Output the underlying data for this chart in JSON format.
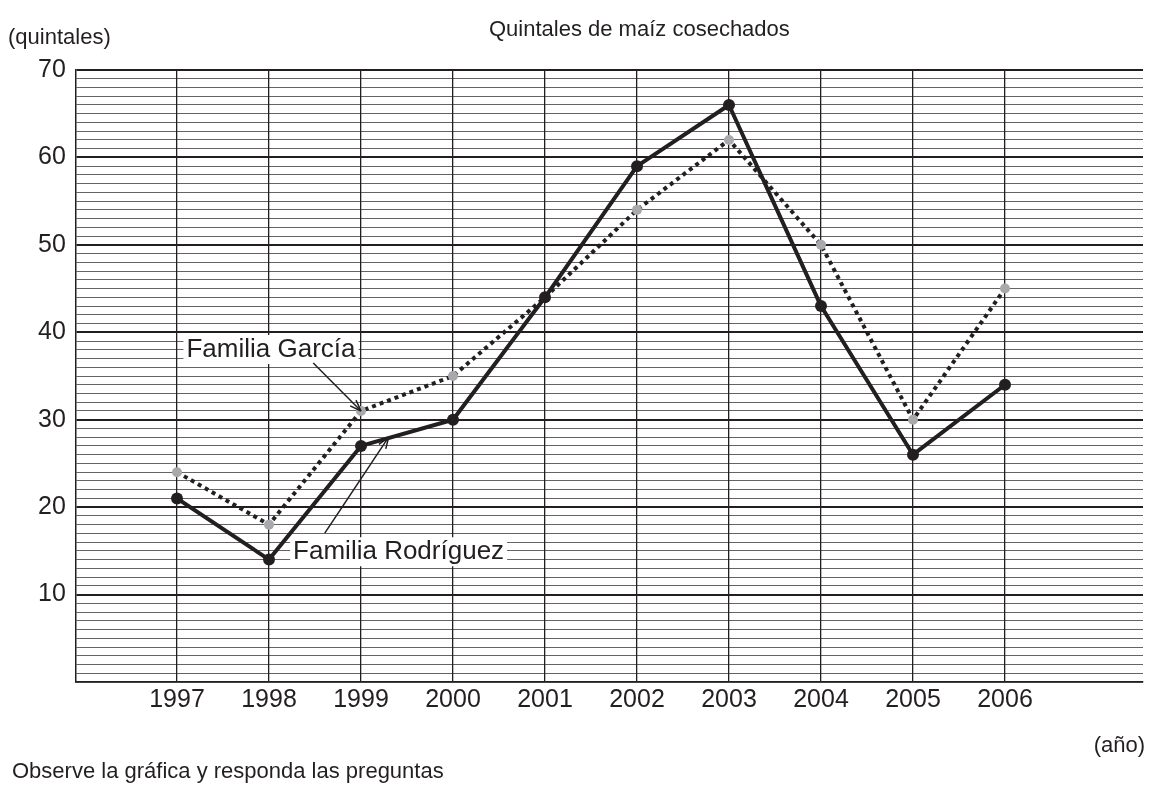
{
  "chart_data": {
    "type": "line",
    "title": "Quintales de maíz cosechados",
    "ylabel": "(quintales)",
    "xlabel": "(año)",
    "x": [
      1997,
      1998,
      1999,
      2000,
      2001,
      2002,
      2003,
      2004,
      2005,
      2006
    ],
    "xlim": [
      1995.9,
      2007.5
    ],
    "xticks": [
      1997,
      1998,
      1999,
      2000,
      2001,
      2002,
      2003,
      2004,
      2005,
      2006
    ],
    "ylim": [
      0,
      70
    ],
    "yticks": [
      {
        "value": 0,
        "label": null
      },
      {
        "value": 1,
        "label": null
      },
      {
        "value": 2,
        "label": null
      },
      {
        "value": 3,
        "label": null
      },
      {
        "value": 4,
        "label": null
      },
      {
        "value": 5,
        "label": null
      },
      {
        "value": 6,
        "label": null
      },
      {
        "value": 7,
        "label": null
      },
      {
        "value": 8,
        "label": null
      },
      {
        "value": 9,
        "label": null
      },
      10,
      {
        "value": 11,
        "label": null
      },
      {
        "value": 12,
        "label": null
      },
      {
        "value": 13,
        "label": null
      },
      {
        "value": 14,
        "label": null
      },
      {
        "value": 15,
        "label": null
      },
      {
        "value": 16,
        "label": null
      },
      {
        "value": 17,
        "label": null
      },
      {
        "value": 18,
        "label": null
      },
      {
        "value": 19,
        "label": null
      },
      20,
      {
        "value": 21,
        "label": null
      },
      {
        "value": 22,
        "label": null
      },
      {
        "value": 23,
        "label": null
      },
      {
        "value": 24,
        "label": null
      },
      {
        "value": 25,
        "label": null
      },
      {
        "value": 26,
        "label": null
      },
      {
        "value": 27,
        "label": null
      },
      {
        "value": 28,
        "label": null
      },
      {
        "value": 29,
        "label": null
      },
      30,
      {
        "value": 31,
        "label": null
      },
      {
        "value": 32,
        "label": null
      },
      {
        "value": 33,
        "label": null
      },
      {
        "value": 34,
        "label": null
      },
      {
        "value": 35,
        "label": null
      },
      {
        "value": 36,
        "label": null
      },
      {
        "value": 37,
        "label": null
      },
      {
        "value": 38,
        "label": null
      },
      {
        "value": 39,
        "label": null
      },
      40,
      {
        "value": 41,
        "label": null
      },
      {
        "value": 42,
        "label": null
      },
      {
        "value": 43,
        "label": null
      },
      {
        "value": 44,
        "label": null
      },
      {
        "value": 45,
        "label": null
      },
      {
        "value": 46,
        "label": null
      },
      {
        "value": 47,
        "label": null
      },
      {
        "value": 48,
        "label": null
      },
      {
        "value": 49,
        "label": null
      },
      50,
      {
        "value": 51,
        "label": null
      },
      {
        "value": 52,
        "label": null
      },
      {
        "value": 53,
        "label": null
      },
      {
        "value": 54,
        "label": null
      },
      {
        "value": 55,
        "label": null
      },
      {
        "value": 56,
        "label": null
      },
      {
        "value": 57,
        "label": null
      },
      {
        "value": 58,
        "label": null
      },
      {
        "value": 59,
        "label": null
      },
      60,
      {
        "value": 61,
        "label": null
      },
      {
        "value": 62,
        "label": null
      },
      {
        "value": 63,
        "label": null
      },
      {
        "value": 64,
        "label": null
      },
      {
        "value": 65,
        "label": null
      },
      {
        "value": 66,
        "label": null
      },
      {
        "value": 67,
        "label": null
      },
      {
        "value": 68,
        "label": null
      },
      {
        "value": 69,
        "label": null
      },
      70
    ],
    "grid": true,
    "legend": false,
    "marker": "circle",
    "series": [
      {
        "color": "#231f20",
        "line_style": "dotted",
        "colors": [
          "#a7a9ac",
          "#a7a9ac",
          "#a7a9ac",
          "#a7a9ac",
          "#a7a9ac",
          "#a7a9ac",
          "#a7a9ac",
          "#a7a9ac",
          "#a7a9ac",
          "#a7a9ac"
        ],
        "values": [
          24,
          18,
          31,
          35,
          44,
          54,
          62,
          50,
          30,
          45
        ]
      },
      {
        "color": "#231f20",
        "line_style": "solid",
        "values": [
          21,
          14,
          27,
          30,
          44,
          59,
          66,
          43,
          26,
          34
        ]
      }
    ],
    "annotations": [
      {
        "text": "Familia García",
        "x": 1999,
        "y": 31
      },
      {
        "text": "Familia Rodríguez",
        "x": 1999.3,
        "y": 28
      },
      "Observe la gráfica y responda las preguntas"
    ]
  }
}
